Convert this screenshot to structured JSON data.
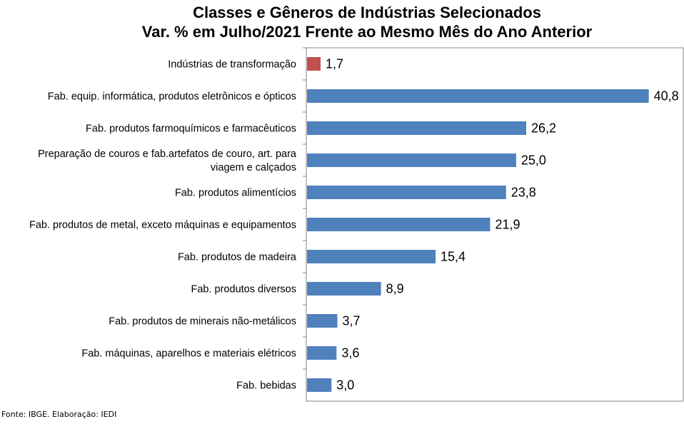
{
  "chart_data": {
    "type": "bar",
    "orientation": "horizontal",
    "title": [
      "Classes e Gêneros de Indústrias Selecionados",
      "Var. % em Julho/2021 Frente ao Mesmo Mês do Ano Anterior"
    ],
    "categories": [
      [
        "Indústrias de transformação"
      ],
      [
        "Fab. equip. informática, produtos eletrônicos e ópticos"
      ],
      [
        "Fab. produtos farmoquímicos e farmacêuticos"
      ],
      [
        "Preparação de couros e fab.artefatos de couro, art. para",
        "viagem e calçados"
      ],
      [
        "Fab. produtos alimentícios"
      ],
      [
        "Fab. produtos de metal, exceto máquinas e equipamentos"
      ],
      [
        "Fab. produtos de madeira"
      ],
      [
        "Fab. produtos diversos"
      ],
      [
        "Fab. produtos de minerais não-metálicos"
      ],
      [
        "Fab. máquinas, aparelhos e materiais elétricos"
      ],
      [
        "Fab. bebidas"
      ]
    ],
    "values": [
      1.7,
      40.8,
      26.2,
      25.0,
      23.8,
      21.9,
      15.4,
      8.9,
      3.7,
      3.6,
      3.0
    ],
    "value_labels": [
      "1,7",
      "40,8",
      "26,2",
      "25,0",
      "23,8",
      "21,9",
      "15,4",
      "8,9",
      "3,7",
      "3,6",
      "3,0"
    ],
    "colors": [
      "#c0504d",
      "#4f81bd",
      "#4f81bd",
      "#4f81bd",
      "#4f81bd",
      "#4f81bd",
      "#4f81bd",
      "#4f81bd",
      "#4f81bd",
      "#4f81bd",
      "#4f81bd"
    ],
    "xlim": [
      0,
      45
    ],
    "grid": false,
    "legend": "none"
  },
  "source_note": "Fonte: IBGE. Elaboração: IEDI"
}
